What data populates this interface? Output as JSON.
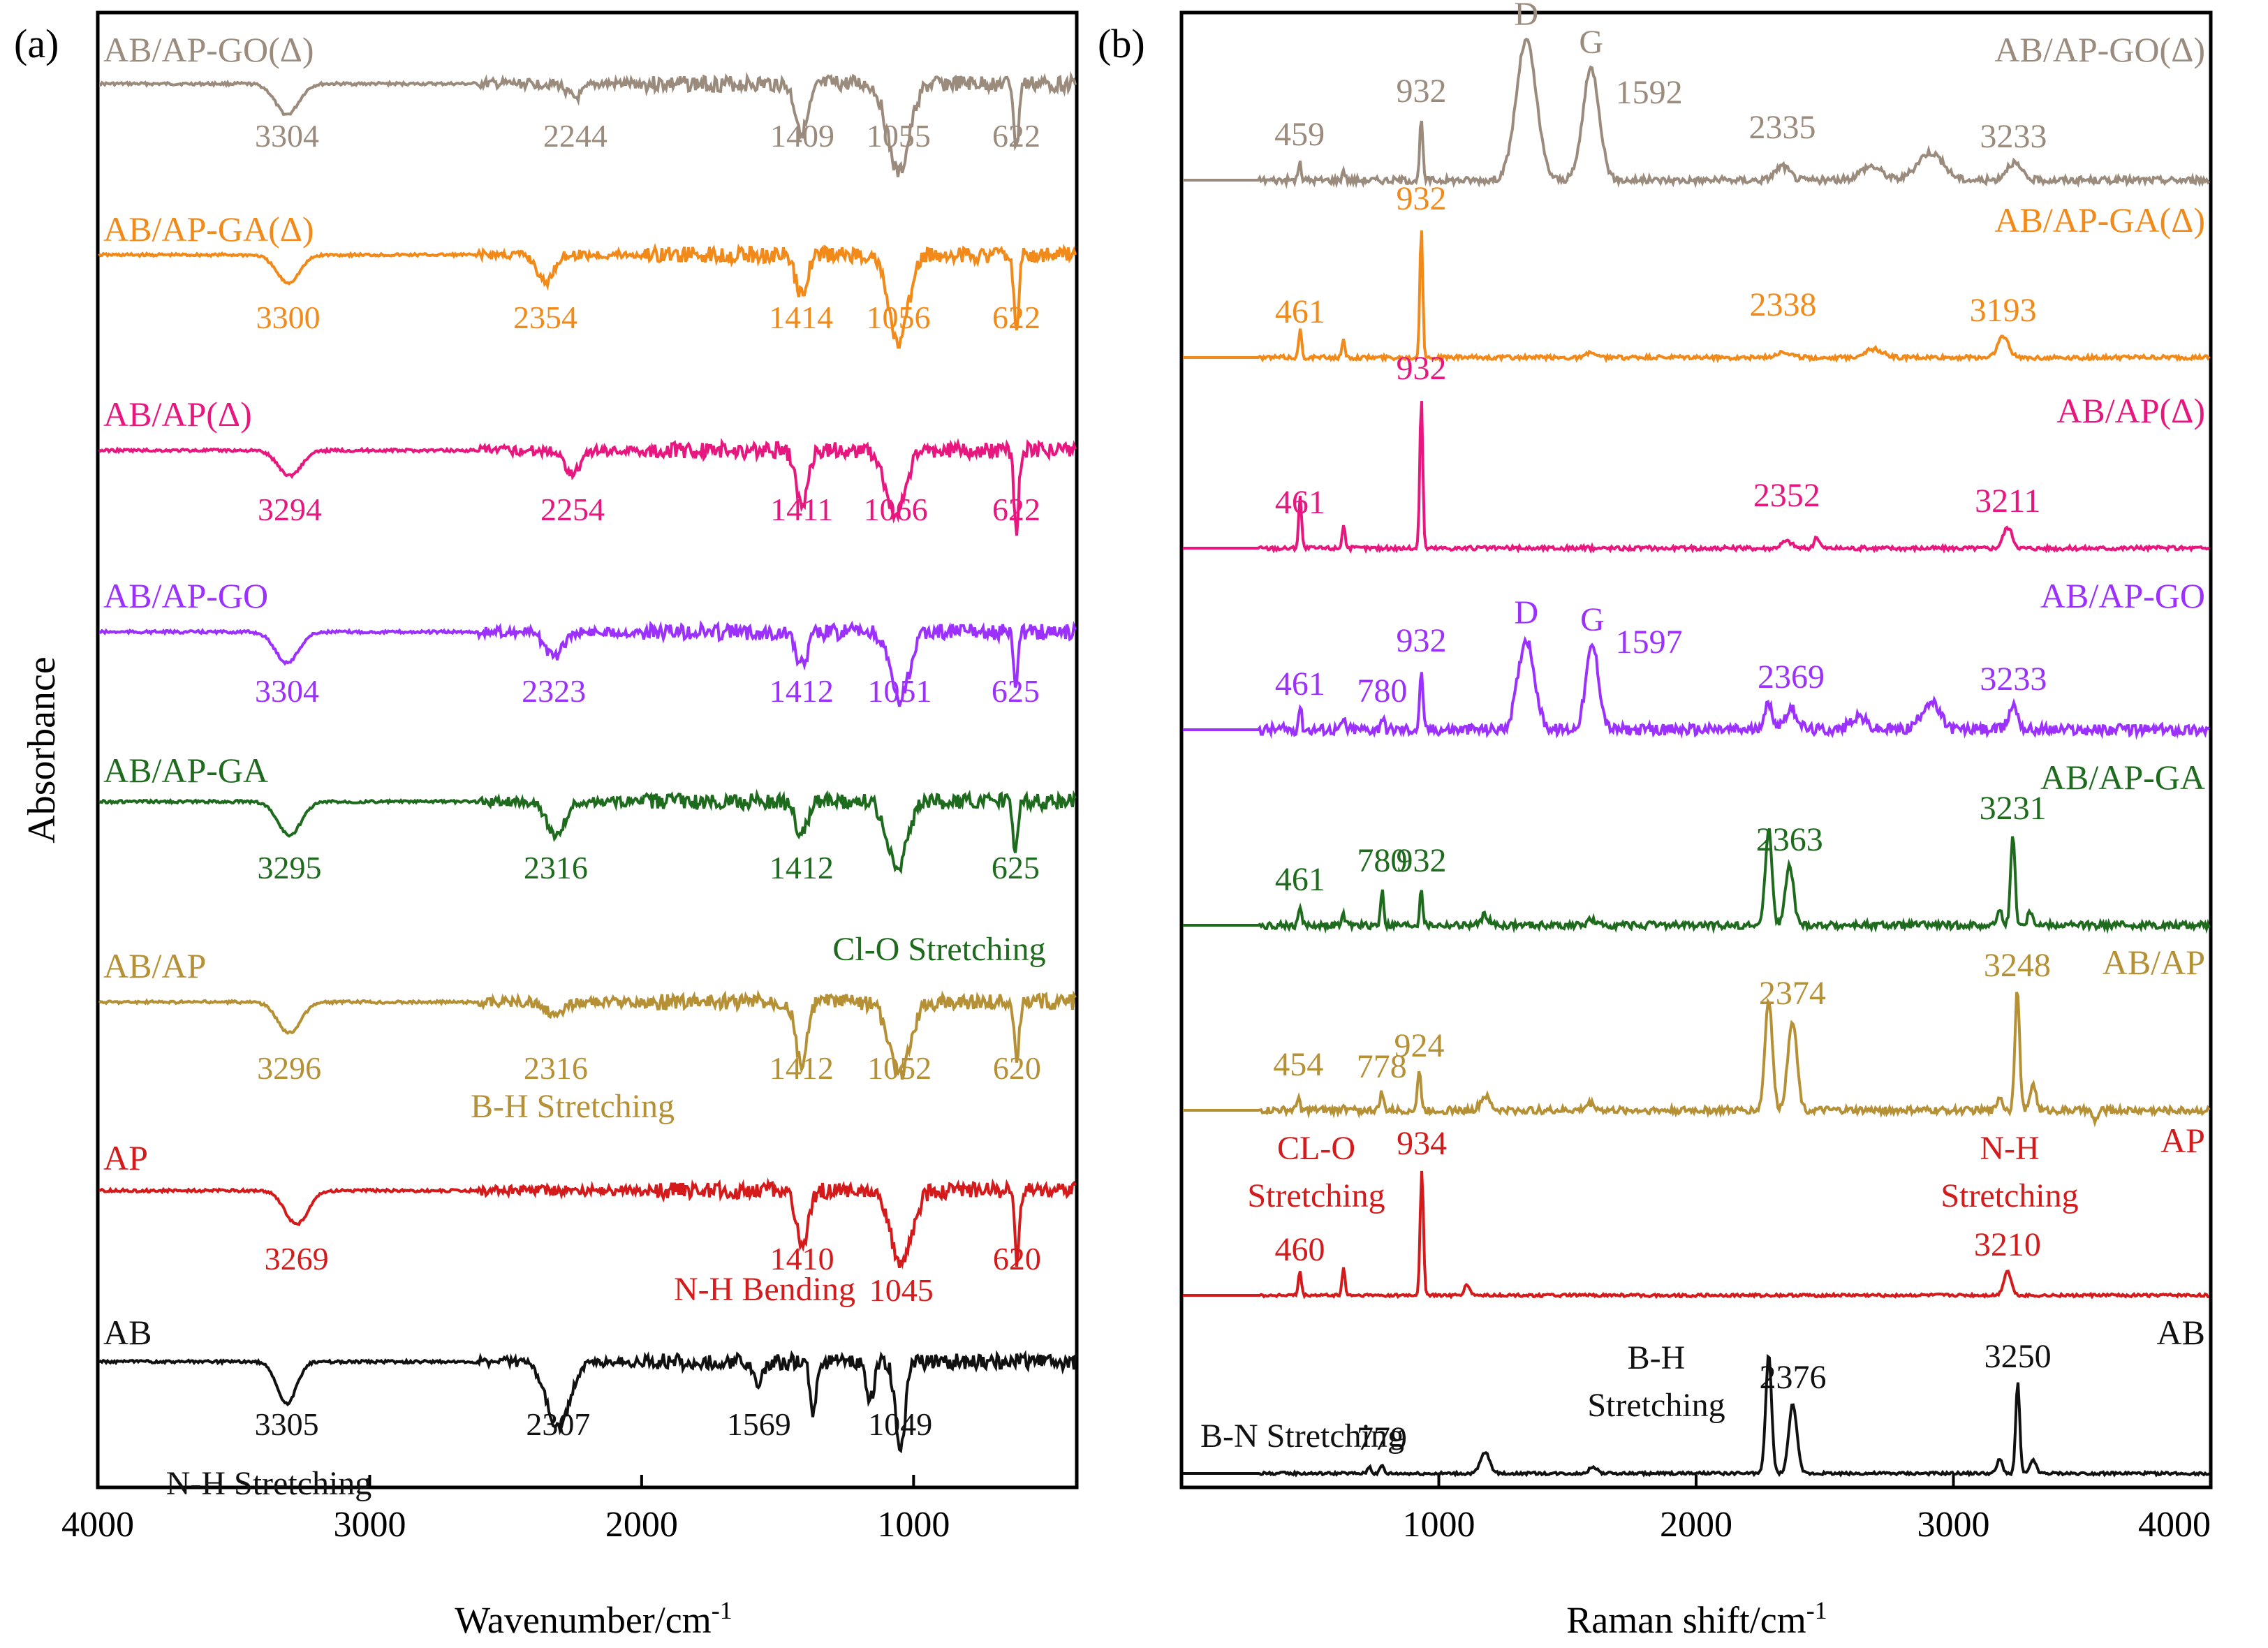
{
  "chart_data": [
    {
      "type": "line",
      "panel": "(a)",
      "xlabel": "Wavenumber/cm",
      "xlabel_sup": "-1",
      "ylabel": "Absorbance",
      "xlim": [
        4000,
        400
      ],
      "xticks": [
        "4000",
        "3000",
        "2000",
        "1000"
      ],
      "xtick_values": [
        4000,
        3000,
        2000,
        1000
      ],
      "series": [
        {
          "name": "AB/AP-GO(Δ)",
          "color": "#9a8b7c",
          "peaks": [
            {
              "x": 3304,
              "d": 0.55,
              "w": 60,
              "label": "3304"
            },
            {
              "x": 2244,
              "d": 0.25,
              "w": 40,
              "label": "2244"
            },
            {
              "x": 1409,
              "d": 0.85,
              "w": 35,
              "label": "1409"
            },
            {
              "x": 1055,
              "d": 1.6,
              "w": 55,
              "label": "1055"
            },
            {
              "x": 622,
              "d": 1.2,
              "w": 12,
              "label": "622"
            }
          ]
        },
        {
          "name": "AB/AP-GA(Δ)",
          "color": "#f28a1a",
          "peaks": [
            {
              "x": 3300,
              "d": 0.5,
              "w": 60,
              "label": "3300"
            },
            {
              "x": 2354,
              "d": 0.5,
              "w": 40,
              "label": "2354"
            },
            {
              "x": 1414,
              "d": 0.7,
              "w": 30,
              "label": "1414"
            },
            {
              "x": 1056,
              "d": 1.6,
              "w": 50,
              "label": "1056"
            },
            {
              "x": 622,
              "d": 1.4,
              "w": 12,
              "label": "622"
            }
          ]
        },
        {
          "name": "AB/AP(Δ)",
          "color": "#e8177f",
          "peaks": [
            {
              "x": 3294,
              "d": 0.45,
              "w": 60,
              "label": "3294"
            },
            {
              "x": 2254,
              "d": 0.4,
              "w": 40,
              "label": "2254"
            },
            {
              "x": 1411,
              "d": 1.0,
              "w": 30,
              "label": "1411"
            },
            {
              "x": 1066,
              "d": 1.2,
              "w": 50,
              "label": "1066"
            },
            {
              "x": 622,
              "d": 1.5,
              "w": 12,
              "label": "622"
            }
          ]
        },
        {
          "name": "AB/AP-GO",
          "color": "#9b30ff",
          "peaks": [
            {
              "x": 3304,
              "d": 0.55,
              "w": 60,
              "label": "3304"
            },
            {
              "x": 2323,
              "d": 0.45,
              "w": 45,
              "label": "2323"
            },
            {
              "x": 1412,
              "d": 0.6,
              "w": 30,
              "label": "1412"
            },
            {
              "x": 1051,
              "d": 1.2,
              "w": 50,
              "label": "1051"
            },
            {
              "x": 625,
              "d": 0.9,
              "w": 12,
              "label": "625"
            }
          ]
        },
        {
          "name": "AB/AP-GA",
          "color": "#1e6b1e",
          "peaks": [
            {
              "x": 3295,
              "d": 0.6,
              "w": 60,
              "label": "3295"
            },
            {
              "x": 2316,
              "d": 0.6,
              "w": 45,
              "label": "2316"
            },
            {
              "x": 1412,
              "d": 0.6,
              "w": 30,
              "label": "1412"
            },
            {
              "x": 1060,
              "d": 1.2,
              "w": 50,
              "label": ""
            },
            {
              "x": 625,
              "d": 0.9,
              "w": 12,
              "label": "625"
            }
          ]
        },
        {
          "name": "AB/AP",
          "color": "#b59035",
          "peaks": [
            {
              "x": 3296,
              "d": 0.55,
              "w": 60,
              "label": "3296"
            },
            {
              "x": 2316,
              "d": 0.25,
              "w": 45,
              "label": "2316"
            },
            {
              "x": 1412,
              "d": 1.1,
              "w": 30,
              "label": "1412"
            },
            {
              "x": 1052,
              "d": 1.3,
              "w": 55,
              "label": "1052"
            },
            {
              "x": 620,
              "d": 1.1,
              "w": 12,
              "label": "620"
            }
          ]
        },
        {
          "name": "AP",
          "color": "#d41a1a",
          "peaks": [
            {
              "x": 3269,
              "d": 0.6,
              "w": 60,
              "label": "3269"
            },
            {
              "x": 1410,
              "d": 1.0,
              "w": 30,
              "label": "1410"
            },
            {
              "x": 1045,
              "d": 1.3,
              "w": 55,
              "label": "1045"
            },
            {
              "x": 620,
              "d": 1.3,
              "w": 12,
              "label": "620"
            }
          ]
        },
        {
          "name": "AB",
          "color": "#111111",
          "peaks": [
            {
              "x": 3305,
              "d": 0.75,
              "w": 50,
              "label": "3305"
            },
            {
              "x": 2307,
              "d": 1.2,
              "w": 60,
              "label": "2307"
            },
            {
              "x": 1569,
              "d": 0.45,
              "w": 20,
              "label": "1569"
            },
            {
              "x": 1370,
              "d": 0.9,
              "w": 15,
              "label": ""
            },
            {
              "x": 1160,
              "d": 0.7,
              "w": 20,
              "label": ""
            },
            {
              "x": 1049,
              "d": 1.6,
              "w": 25,
              "label": "1049"
            }
          ]
        }
      ],
      "annotations": [
        {
          "text": "Cl-O Stretching",
          "color": "#1e6b1e"
        },
        {
          "text": "B-H Stretching",
          "color": "#b59035"
        },
        {
          "text": "N-H Bending",
          "color": "#d41a1a"
        },
        {
          "text": "N-H Stretching",
          "color": "#111111"
        }
      ]
    },
    {
      "type": "line",
      "panel": "(b)",
      "xlabel": "Raman shift/cm",
      "xlabel_sup": "-1",
      "xlim": [
        0,
        4000
      ],
      "xticks": [
        "1000",
        "2000",
        "3000",
        "4000"
      ],
      "xtick_values": [
        1000,
        2000,
        3000,
        4000
      ],
      "series": [
        {
          "name": "AB/AP-GO(Δ)",
          "color": "#9a8b7c",
          "peaks": [
            {
              "x": 459,
              "h": 0.25,
              "w": 8,
              "label": "459"
            },
            {
              "x": 630,
              "h": 0.15,
              "w": 8,
              "label": ""
            },
            {
              "x": 932,
              "h": 0.9,
              "w": 8,
              "label": "932"
            },
            {
              "x": 1340,
              "h": 2.0,
              "w": 55,
              "label": "D"
            },
            {
              "x": 1592,
              "h": 1.6,
              "w": 45,
              "label": "G"
            },
            {
              "x": 2335,
              "h": 0.2,
              "w": 40,
              "label": "2335"
            },
            {
              "x": 2680,
              "h": 0.2,
              "w": 60,
              "label": ""
            },
            {
              "x": 2910,
              "h": 0.4,
              "w": 70,
              "label": ""
            },
            {
              "x": 3233,
              "h": 0.25,
              "w": 40,
              "label": "3233"
            }
          ],
          "extra_labels": [
            "1592"
          ]
        },
        {
          "name": "AB/AP-GA(Δ)",
          "color": "#f28a1a",
          "peaks": [
            {
              "x": 461,
              "h": 0.4,
              "w": 8,
              "label": "461"
            },
            {
              "x": 630,
              "h": 0.25,
              "w": 8,
              "label": ""
            },
            {
              "x": 932,
              "h": 1.9,
              "w": 8,
              "label": "932"
            },
            {
              "x": 1590,
              "h": 0.08,
              "w": 20,
              "label": ""
            },
            {
              "x": 2338,
              "h": 0.08,
              "w": 40,
              "label": "2338"
            },
            {
              "x": 2690,
              "h": 0.12,
              "w": 50,
              "label": ""
            },
            {
              "x": 3193,
              "h": 0.3,
              "w": 30,
              "label": "3193"
            }
          ]
        },
        {
          "name": "AB/AP(Δ)",
          "color": "#e8177f",
          "peaks": [
            {
              "x": 461,
              "h": 0.75,
              "w": 8,
              "label": "461"
            },
            {
              "x": 630,
              "h": 0.35,
              "w": 8,
              "label": ""
            },
            {
              "x": 932,
              "h": 2.2,
              "w": 8,
              "label": "932"
            },
            {
              "x": 2352,
              "h": 0.1,
              "w": 30,
              "label": "2352"
            },
            {
              "x": 2470,
              "h": 0.15,
              "w": 15,
              "label": ""
            },
            {
              "x": 3211,
              "h": 0.3,
              "w": 25,
              "label": "3211"
            }
          ]
        },
        {
          "name": "AB/AP-GO",
          "color": "#9b30ff",
          "peaks": [
            {
              "x": 461,
              "h": 0.35,
              "w": 8,
              "label": "461"
            },
            {
              "x": 630,
              "h": 0.15,
              "w": 8,
              "label": ""
            },
            {
              "x": 780,
              "h": 0.18,
              "w": 10,
              "label": "780"
            },
            {
              "x": 932,
              "h": 0.9,
              "w": 8,
              "label": "932"
            },
            {
              "x": 1340,
              "h": 1.3,
              "w": 45,
              "label": "D"
            },
            {
              "x": 1597,
              "h": 1.2,
              "w": 35,
              "label": "G"
            },
            {
              "x": 2280,
              "h": 0.35,
              "w": 25,
              "label": ""
            },
            {
              "x": 2369,
              "h": 0.3,
              "w": 35,
              "label": "2369"
            },
            {
              "x": 2630,
              "h": 0.2,
              "w": 40,
              "label": ""
            },
            {
              "x": 2910,
              "h": 0.4,
              "w": 50,
              "label": ""
            },
            {
              "x": 3233,
              "h": 0.35,
              "w": 25,
              "label": "3233"
            }
          ],
          "extra_labels": [
            "1597"
          ]
        },
        {
          "name": "AB/AP-GA",
          "color": "#1e6b1e",
          "peaks": [
            {
              "x": 461,
              "h": 0.3,
              "w": 8,
              "label": "461"
            },
            {
              "x": 630,
              "h": 0.15,
              "w": 8,
              "label": ""
            },
            {
              "x": 780,
              "h": 0.55,
              "w": 8,
              "label": "780"
            },
            {
              "x": 932,
              "h": 0.55,
              "w": 8,
              "label": "932"
            },
            {
              "x": 1180,
              "h": 0.15,
              "w": 20,
              "label": ""
            },
            {
              "x": 1590,
              "h": 0.08,
              "w": 20,
              "label": ""
            },
            {
              "x": 2282,
              "h": 1.4,
              "w": 18,
              "label": ""
            },
            {
              "x": 2363,
              "h": 0.85,
              "w": 22,
              "label": "2363"
            },
            {
              "x": 3180,
              "h": 0.2,
              "w": 15,
              "label": ""
            },
            {
              "x": 3231,
              "h": 1.3,
              "w": 12,
              "label": "3231"
            },
            {
              "x": 3300,
              "h": 0.2,
              "w": 15,
              "label": ""
            }
          ]
        },
        {
          "name": "AB/AP",
          "color": "#b59035",
          "peaks": [
            {
              "x": 454,
              "h": 0.2,
              "w": 8,
              "label": "454"
            },
            {
              "x": 630,
              "h": 0.1,
              "w": 8,
              "label": ""
            },
            {
              "x": 778,
              "h": 0.25,
              "w": 10,
              "label": "778"
            },
            {
              "x": 924,
              "h": 0.55,
              "w": 10,
              "label": "924"
            },
            {
              "x": 1180,
              "h": 0.2,
              "w": 25,
              "label": ""
            },
            {
              "x": 1590,
              "h": 0.1,
              "w": 25,
              "label": ""
            },
            {
              "x": 2282,
              "h": 1.6,
              "w": 20,
              "label": ""
            },
            {
              "x": 2374,
              "h": 1.3,
              "w": 25,
              "label": "2374"
            },
            {
              "x": 3180,
              "h": 0.2,
              "w": 15,
              "label": ""
            },
            {
              "x": 3248,
              "h": 1.7,
              "w": 13,
              "label": "3248"
            },
            {
              "x": 3310,
              "h": 0.4,
              "w": 15,
              "label": ""
            },
            {
              "x": 3550,
              "h": -0.15,
              "w": 15,
              "label": ""
            }
          ]
        },
        {
          "name": "AP",
          "color": "#d41a1a",
          "peaks": [
            {
              "x": 460,
              "h": 0.35,
              "w": 8,
              "label": "460"
            },
            {
              "x": 630,
              "h": 0.4,
              "w": 8,
              "label": ""
            },
            {
              "x": 934,
              "h": 1.8,
              "w": 9,
              "label": "934"
            },
            {
              "x": 1110,
              "h": 0.15,
              "w": 15,
              "label": ""
            },
            {
              "x": 3210,
              "h": 0.35,
              "w": 20,
              "label": "3210"
            }
          ]
        },
        {
          "name": "AB",
          "color": "#111111",
          "peaks": [
            {
              "x": 730,
              "h": 0.1,
              "w": 10,
              "label": ""
            },
            {
              "x": 779,
              "h": 0.12,
              "w": 10,
              "label": "779"
            },
            {
              "x": 1180,
              "h": 0.3,
              "w": 25,
              "label": ""
            },
            {
              "x": 1600,
              "h": 0.1,
              "w": 20,
              "label": ""
            },
            {
              "x": 2282,
              "h": 1.7,
              "w": 16,
              "label": ""
            },
            {
              "x": 2376,
              "h": 1.0,
              "w": 22,
              "label": "2376"
            },
            {
              "x": 3180,
              "h": 0.2,
              "w": 15,
              "label": ""
            },
            {
              "x": 3250,
              "h": 1.3,
              "w": 11,
              "label": "3250"
            },
            {
              "x": 3310,
              "h": 0.2,
              "w": 15,
              "label": ""
            }
          ]
        }
      ],
      "annotations": [
        {
          "text": "CL-O",
          "color": "#d41a1a"
        },
        {
          "text": "Stretching",
          "color": "#d41a1a"
        },
        {
          "text": "N-H",
          "color": "#d41a1a"
        },
        {
          "text": "Stretching",
          "color": "#d41a1a"
        },
        {
          "text": "B-H",
          "color": "#111111"
        },
        {
          "text": "Stretching",
          "color": "#111111"
        },
        {
          "text": "B-N Stretching",
          "color": "#111111"
        }
      ]
    }
  ]
}
